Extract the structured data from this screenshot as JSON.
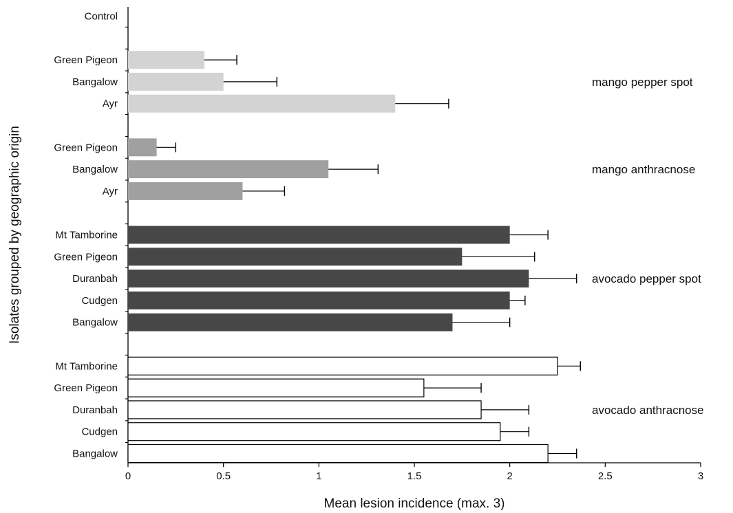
{
  "chart_data": {
    "type": "bar",
    "orientation": "horizontal",
    "title": "",
    "xlabel": "Mean lesion incidence (max. 3)",
    "ylabel": "Isolates grouped by geographic origin",
    "xlim": [
      0,
      3
    ],
    "xticks": [
      "0",
      "0.5",
      "1",
      "1.5",
      "2",
      "2.5",
      "3"
    ],
    "grid": false,
    "control": {
      "label": "Control",
      "value": 0
    },
    "series": [
      {
        "name": "mango pepper spot",
        "color": "#d3d3d3",
        "categories": [
          "Green Pigeon",
          "Bangalow",
          "Ayr"
        ],
        "values": [
          0.4,
          0.5,
          1.4
        ],
        "errors": [
          0.17,
          0.28,
          0.28
        ]
      },
      {
        "name": "mango anthracnose",
        "color": "#a0a0a0",
        "categories": [
          "Green Pigeon",
          "Bangalow",
          "Ayr"
        ],
        "values": [
          0.15,
          1.05,
          0.6
        ],
        "errors": [
          0.1,
          0.26,
          0.22
        ]
      },
      {
        "name": "avocado pepper spot",
        "color": "#474747",
        "categories": [
          "Mt Tamborine",
          "Green Pigeon",
          "Duranbah",
          "Cudgen",
          "Bangalow"
        ],
        "values": [
          2.0,
          1.75,
          2.1,
          2.0,
          1.7
        ],
        "errors": [
          0.2,
          0.38,
          0.25,
          0.08,
          0.3
        ]
      },
      {
        "name": "avocado anthracnose",
        "color": "#ffffff",
        "categories": [
          "Mt Tamborine",
          "Green Pigeon",
          "Duranbah",
          "Cudgen",
          "Bangalow"
        ],
        "values": [
          2.25,
          1.55,
          1.85,
          1.95,
          2.2
        ],
        "errors": [
          0.12,
          0.3,
          0.25,
          0.15,
          0.15
        ]
      }
    ]
  }
}
